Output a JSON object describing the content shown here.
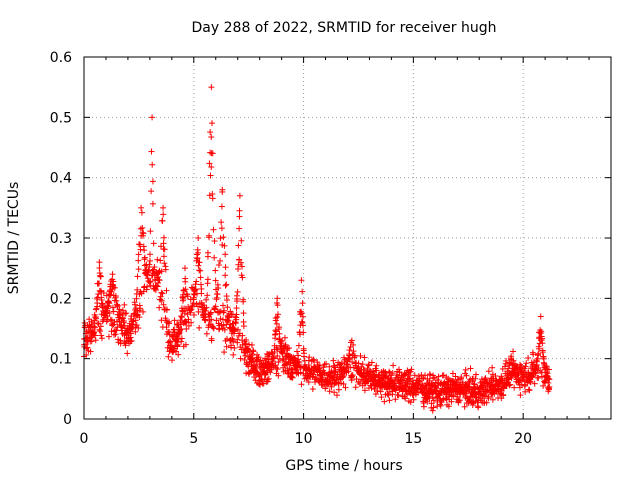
{
  "chart_data": {
    "type": "scatter",
    "title": "Day 288 of 2022, SRMTID for receiver hugh",
    "xlabel": "GPS time / hours",
    "ylabel": "SRMTID / TECUs",
    "xlim": [
      0,
      24
    ],
    "ylim": [
      0,
      0.6
    ],
    "x_ticks": [
      0,
      5,
      10,
      15,
      20
    ],
    "y_ticks": [
      0,
      0.1,
      0.2,
      0.3,
      0.4,
      0.5,
      0.6
    ],
    "x_tick_labels": [
      "0",
      "5",
      "10",
      "15",
      "20"
    ],
    "y_tick_labels": [
      "0",
      "0.1",
      "0.2",
      "0.3",
      "0.4",
      "0.5",
      "0.6"
    ],
    "grid": true,
    "marker": "plus",
    "color": "#ff0000",
    "series": [
      {
        "name": "SRMTID",
        "time_range_hours": [
          0,
          21.2
        ],
        "sample_step_hours": 0.0167,
        "baseline_profile": [
          [
            0,
            0.13
          ],
          [
            0.5,
            0.14
          ],
          [
            1,
            0.17
          ],
          [
            1.5,
            0.16
          ],
          [
            2,
            0.14
          ],
          [
            2.5,
            0.18
          ],
          [
            3,
            0.25
          ],
          [
            3.5,
            0.2
          ],
          [
            4,
            0.12
          ],
          [
            4.5,
            0.15
          ],
          [
            5,
            0.19
          ],
          [
            5.5,
            0.16
          ],
          [
            6,
            0.18
          ],
          [
            6.5,
            0.15
          ],
          [
            7,
            0.13
          ],
          [
            7.5,
            0.1
          ],
          [
            8,
            0.08
          ],
          [
            8.5,
            0.09
          ],
          [
            9,
            0.11
          ],
          [
            9.5,
            0.09
          ],
          [
            10,
            0.08
          ],
          [
            11,
            0.07
          ],
          [
            12,
            0.075
          ],
          [
            13,
            0.07
          ],
          [
            14,
            0.06
          ],
          [
            15,
            0.055
          ],
          [
            16,
            0.045
          ],
          [
            17,
            0.05
          ],
          [
            18,
            0.045
          ],
          [
            19,
            0.06
          ],
          [
            19.5,
            0.08
          ],
          [
            20,
            0.07
          ],
          [
            20.5,
            0.08
          ],
          [
            21,
            0.07
          ],
          [
            21.2,
            0.06
          ]
        ],
        "spread": 0.035,
        "features": [
          {
            "t": 0.7,
            "peak": 0.26,
            "width": 0.2
          },
          {
            "t": 1.3,
            "peak": 0.24,
            "width": 0.3
          },
          {
            "t": 2.6,
            "peak": 0.35,
            "width": 0.25
          },
          {
            "t": 3.1,
            "peak": 0.5,
            "width": 0.1
          },
          {
            "t": 3.6,
            "peak": 0.35,
            "width": 0.2
          },
          {
            "t": 4.6,
            "peak": 0.25,
            "width": 0.2
          },
          {
            "t": 5.2,
            "peak": 0.3,
            "width": 0.2
          },
          {
            "t": 5.8,
            "peak": 0.55,
            "width": 0.2
          },
          {
            "t": 6.3,
            "peak": 0.38,
            "width": 0.25
          },
          {
            "t": 7.1,
            "peak": 0.37,
            "width": 0.2
          },
          {
            "t": 8.8,
            "peak": 0.2,
            "width": 0.15
          },
          {
            "t": 9.9,
            "peak": 0.23,
            "width": 0.15
          },
          {
            "t": 12.2,
            "peak": 0.13,
            "width": 0.3
          },
          {
            "t": 20.8,
            "peak": 0.17,
            "width": 0.2
          }
        ]
      }
    ]
  }
}
